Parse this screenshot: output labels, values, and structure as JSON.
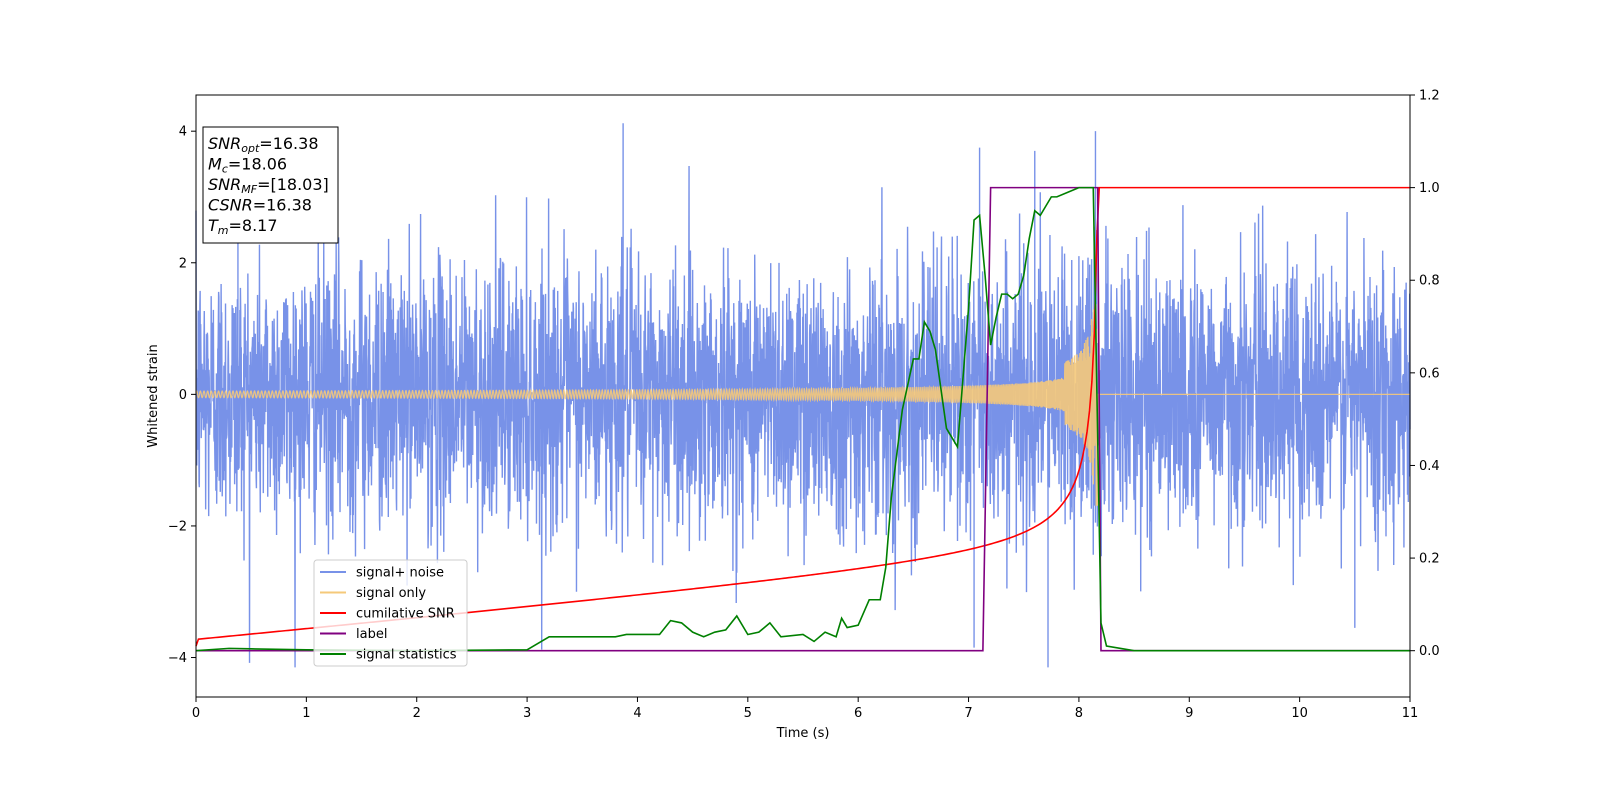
{
  "chart_data": {
    "type": "line",
    "title": "",
    "xlabel": "Time (s)",
    "ylabel_left": "Whitened strain",
    "ylabel_right": "",
    "xlim": [
      0,
      11
    ],
    "ylim_left": [
      -4.6,
      4.55
    ],
    "ylim_right": [
      -0.1,
      1.2
    ],
    "xticks": [
      "0",
      "1",
      "2",
      "3",
      "4",
      "5",
      "6",
      "7",
      "8",
      "9",
      "10",
      "11"
    ],
    "yticks_left": [
      "4",
      "2",
      "0",
      "−2",
      "−4"
    ],
    "yticks_right": [
      "1.2",
      "1.0",
      "0.8",
      "0.6",
      "0.4",
      "0.2",
      "0.0"
    ],
    "grid": false,
    "legend_placement": "lower-left",
    "colors": {
      "noise": "#7892e8",
      "signal": "#f5c97a",
      "csnr": "#ff0000",
      "label": "#800080",
      "stats": "#008000"
    },
    "series": [
      {
        "name": "signal+ noise",
        "axis": "left",
        "description_values": {
          "mean": 0.0,
          "std": 1.0,
          "max": 4.12,
          "min": -4.15
        }
      },
      {
        "name": "signal only",
        "axis": "left",
        "chirp": {
          "t_merger": 8.17,
          "amp_start": 0.05,
          "amp_peak": 1.7
        }
      },
      {
        "name": "cumilative SNR",
        "axis": "right",
        "x": [
          0,
          1,
          2,
          3,
          4,
          5,
          6,
          6.5,
          7,
          7.5,
          7.8,
          8.0,
          8.1,
          8.17,
          8.2,
          11
        ],
        "values": [
          0.01,
          0.06,
          0.09,
          0.12,
          0.15,
          0.18,
          0.22,
          0.245,
          0.28,
          0.34,
          0.4,
          0.52,
          0.66,
          0.82,
          1.0,
          1.0
        ]
      },
      {
        "name": "label",
        "axis": "right",
        "x": [
          0,
          7.13,
          7.2,
          8.17,
          8.2,
          11
        ],
        "values": [
          0,
          0,
          1,
          1,
          0,
          0
        ]
      },
      {
        "name": "signal statistics",
        "axis": "right",
        "x": [
          0,
          0.3,
          0.5,
          1,
          2,
          3,
          3.2,
          3.5,
          3.8,
          3.9,
          4.0,
          4.2,
          4.3,
          4.4,
          4.5,
          4.6,
          4.7,
          4.8,
          4.9,
          5.0,
          5.1,
          5.2,
          5.3,
          5.5,
          5.6,
          5.7,
          5.8,
          5.85,
          5.9,
          6.0,
          6.1,
          6.2,
          6.25,
          6.3,
          6.4,
          6.5,
          6.55,
          6.6,
          6.65,
          6.7,
          6.8,
          6.9,
          7.0,
          7.05,
          7.1,
          7.15,
          7.2,
          7.25,
          7.3,
          7.35,
          7.4,
          7.45,
          7.5,
          7.55,
          7.6,
          7.65,
          7.7,
          7.75,
          7.8,
          7.9,
          8.0,
          8.13,
          8.2,
          8.25,
          8.5,
          11
        ],
        "values": [
          0.0,
          0.005,
          0.004,
          0.002,
          0.0,
          0.002,
          0.03,
          0.03,
          0.03,
          0.035,
          0.035,
          0.035,
          0.065,
          0.06,
          0.04,
          0.03,
          0.04,
          0.045,
          0.075,
          0.035,
          0.04,
          0.06,
          0.03,
          0.035,
          0.02,
          0.04,
          0.03,
          0.07,
          0.05,
          0.055,
          0.11,
          0.11,
          0.18,
          0.33,
          0.52,
          0.63,
          0.63,
          0.71,
          0.69,
          0.65,
          0.48,
          0.44,
          0.74,
          0.93,
          0.94,
          0.81,
          0.66,
          0.72,
          0.77,
          0.77,
          0.76,
          0.77,
          0.81,
          0.89,
          0.95,
          0.94,
          0.96,
          0.98,
          0.98,
          0.99,
          1.0,
          1.0,
          0.06,
          0.01,
          0.0,
          0.0
        ]
      }
    ],
    "annotation": {
      "lines": [
        {
          "sym": "SNR",
          "sub": "opt",
          "rest": "=16.38"
        },
        {
          "sym": "M",
          "sub": "c",
          "rest": "=18.06"
        },
        {
          "sym": "SNR",
          "sub": "MF",
          "rest": "=[18.03]"
        },
        {
          "sym": "CSNR",
          "sub": "",
          "rest": "=16.38"
        },
        {
          "sym": "T",
          "sub": "m",
          "rest": "=8.17"
        }
      ]
    }
  }
}
